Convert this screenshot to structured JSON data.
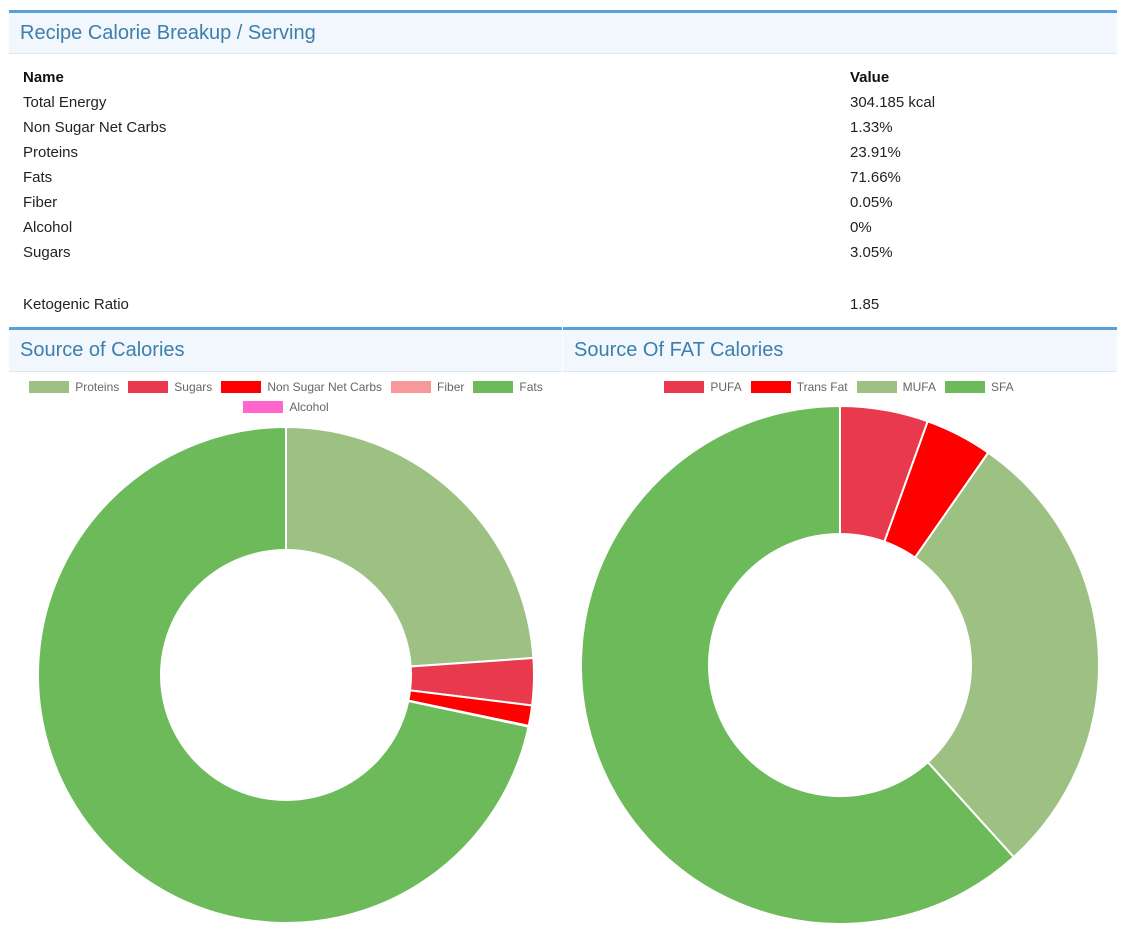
{
  "breakup": {
    "title": "Recipe Calorie Breakup / Serving",
    "headers": {
      "name": "Name",
      "value": "Value"
    },
    "rows": [
      {
        "name": "Total Energy",
        "value": "304.185 kcal"
      },
      {
        "name": "Non Sugar Net Carbs",
        "value": "1.33%"
      },
      {
        "name": "Proteins",
        "value": "23.91%"
      },
      {
        "name": "Fats",
        "value": "71.66%"
      },
      {
        "name": "Fiber",
        "value": "0.05%"
      },
      {
        "name": "Alcohol",
        "value": "0%"
      },
      {
        "name": "Sugars",
        "value": "3.05%"
      }
    ],
    "keto": {
      "name": "Ketogenic Ratio",
      "value": "1.85"
    }
  },
  "calories_panel": {
    "title": "Source of Calories"
  },
  "fat_panel": {
    "title": "Source Of FAT Calories"
  },
  "chart_data": [
    {
      "type": "pie",
      "donut": true,
      "title": "Source of Calories",
      "legend_position": "top",
      "categories": [
        "Proteins",
        "Sugars",
        "Non Sugar Net Carbs",
        "Fiber",
        "Fats",
        "Alcohol"
      ],
      "values": [
        23.91,
        3.05,
        1.33,
        0.05,
        71.66,
        0
      ],
      "colors": [
        "#9dc183",
        "#e8394d",
        "#ff0000",
        "#f7999b",
        "#6cba5a",
        "#ff66cc"
      ]
    },
    {
      "type": "pie",
      "donut": true,
      "title": "Source Of FAT Calories",
      "legend_position": "top",
      "categories": [
        "PUFA",
        "Trans Fat",
        "MUFA",
        "SFA"
      ],
      "values": [
        5.5,
        4.2,
        28.6,
        61.7
      ],
      "colors": [
        "#e8394d",
        "#ff0000",
        "#9dc183",
        "#6cba5a"
      ]
    }
  ]
}
